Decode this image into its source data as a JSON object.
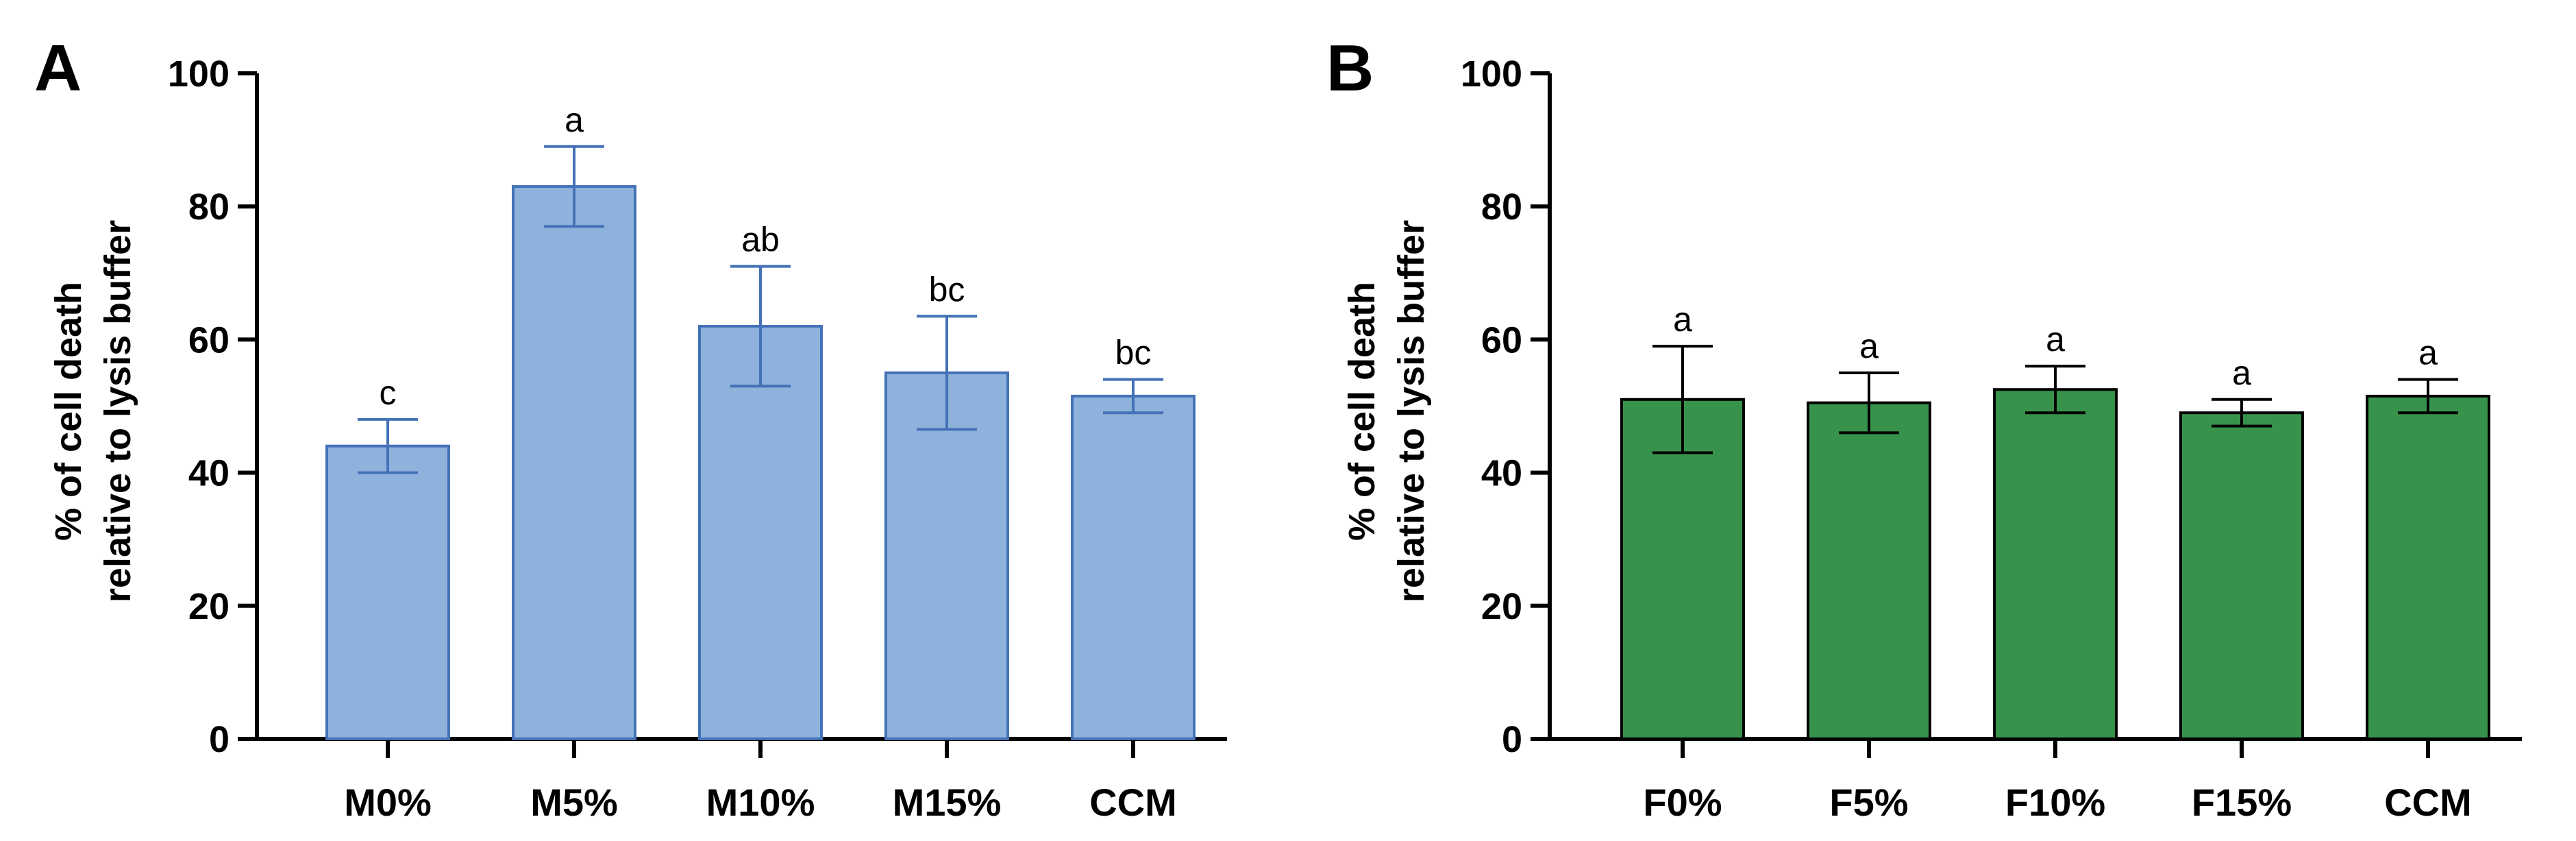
{
  "chart_data": [
    {
      "panel": "A",
      "type": "bar",
      "title": "",
      "xlabel": "",
      "ylabel": "% of cell death relative to lysis buffer",
      "ylabel_lines": [
        "% of cell death",
        "relative to lysis buffer"
      ],
      "ylim": [
        0,
        100
      ],
      "yticks": [
        0,
        20,
        40,
        60,
        80,
        100
      ],
      "grid": false,
      "categories": [
        "M0%",
        "M5%",
        "M10%",
        "M15%",
        "CCM"
      ],
      "values": [
        44,
        83,
        62,
        55,
        51.5
      ],
      "error": [
        4,
        6,
        9,
        8.5,
        2.5
      ],
      "significance": [
        "c",
        "a",
        "ab",
        "bc",
        "bc"
      ],
      "colors": {
        "fill": "#8fb2dc",
        "stroke": "#4472b8",
        "error": "#4472b8"
      }
    },
    {
      "panel": "B",
      "type": "bar",
      "title": "",
      "xlabel": "",
      "ylabel": "% of cell death relative to lysis buffer",
      "ylabel_lines": [
        "% of cell death",
        "relative to lysis buffer"
      ],
      "ylim": [
        0,
        100
      ],
      "yticks": [
        0,
        20,
        40,
        60,
        80,
        100
      ],
      "grid": false,
      "categories": [
        "F0%",
        "F5%",
        "F10%",
        "F15%",
        "CCM"
      ],
      "values": [
        51,
        50.5,
        52.5,
        49,
        51.5
      ],
      "error": [
        8,
        4.5,
        3.5,
        2,
        2.5
      ],
      "significance": [
        "a",
        "a",
        "a",
        "a",
        "a"
      ],
      "colors": {
        "fill": "#37934b",
        "stroke": "#000000",
        "error": "#000000"
      }
    }
  ]
}
